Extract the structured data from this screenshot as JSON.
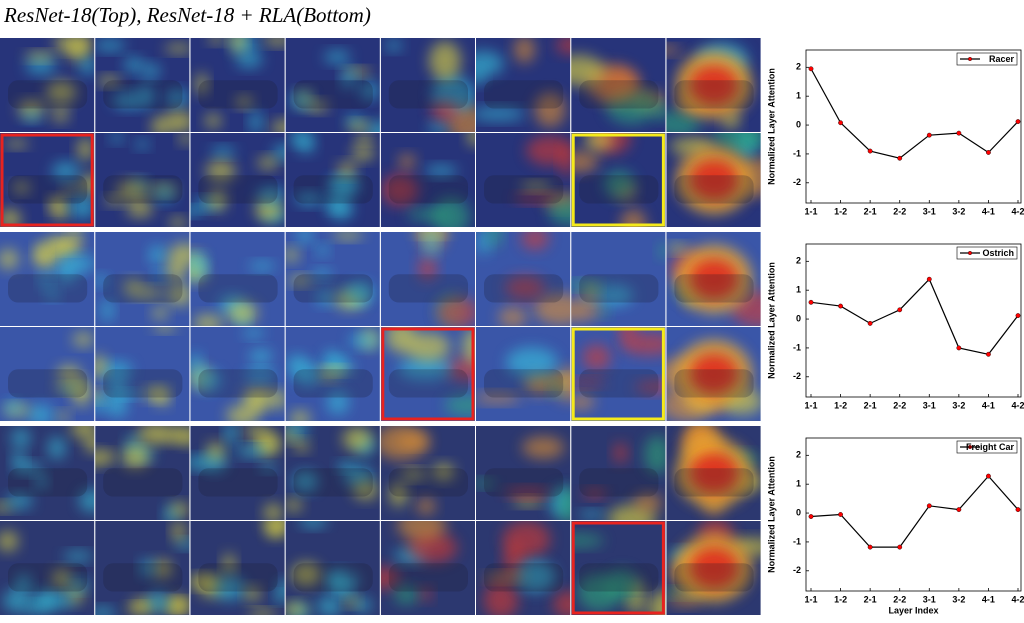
{
  "figure_title": "ResNet-18(Top), ResNet-18 + RLA(Bottom)",
  "chart_data": [
    {
      "type": "line",
      "ylabel": "Normalized Layer Attention",
      "categories": [
        "1-1",
        "1-2",
        "2-1",
        "2-2",
        "3-1",
        "3-2",
        "4-1",
        "4-2"
      ],
      "series": [
        {
          "name": "Racer",
          "color": "#000000",
          "marker_color": "#ff0000",
          "values": [
            1.95,
            0.08,
            -0.9,
            -1.15,
            -0.35,
            -0.28,
            -0.95,
            0.12
          ]
        }
      ],
      "ylim": [
        -2.7,
        2.6
      ],
      "yticks": [
        -2,
        -1,
        0,
        1,
        2
      ],
      "legend": "upper-right"
    },
    {
      "type": "line",
      "ylabel": "Normalized Layer Attention",
      "categories": [
        "1-1",
        "1-2",
        "2-1",
        "2-2",
        "3-1",
        "3-2",
        "4-1",
        "4-2"
      ],
      "series": [
        {
          "name": "Ostrich",
          "color": "#000000",
          "marker_color": "#ff0000",
          "values": [
            0.58,
            0.45,
            -0.15,
            0.32,
            1.38,
            -1.0,
            -1.22,
            0.12
          ]
        }
      ],
      "ylim": [
        -2.7,
        2.6
      ],
      "yticks": [
        -2,
        -1,
        0,
        1,
        2
      ],
      "legend": "upper-right"
    },
    {
      "type": "line",
      "ylabel": "Normalized Layer Attention",
      "xlabel": "Layer Index",
      "categories": [
        "1-1",
        "1-2",
        "2-1",
        "2-2",
        "3-1",
        "3-2",
        "4-1",
        "4-2"
      ],
      "series": [
        {
          "name": "Freight Car",
          "color": "#000000",
          "marker_color": "#ff0000",
          "values": [
            -0.12,
            -0.05,
            -1.18,
            -1.18,
            0.25,
            0.12,
            1.28,
            0.12
          ]
        }
      ],
      "ylim": [
        -2.7,
        2.6
      ],
      "yticks": [
        -2,
        -1,
        0,
        1,
        2
      ],
      "legend": "upper-right"
    }
  ]
}
